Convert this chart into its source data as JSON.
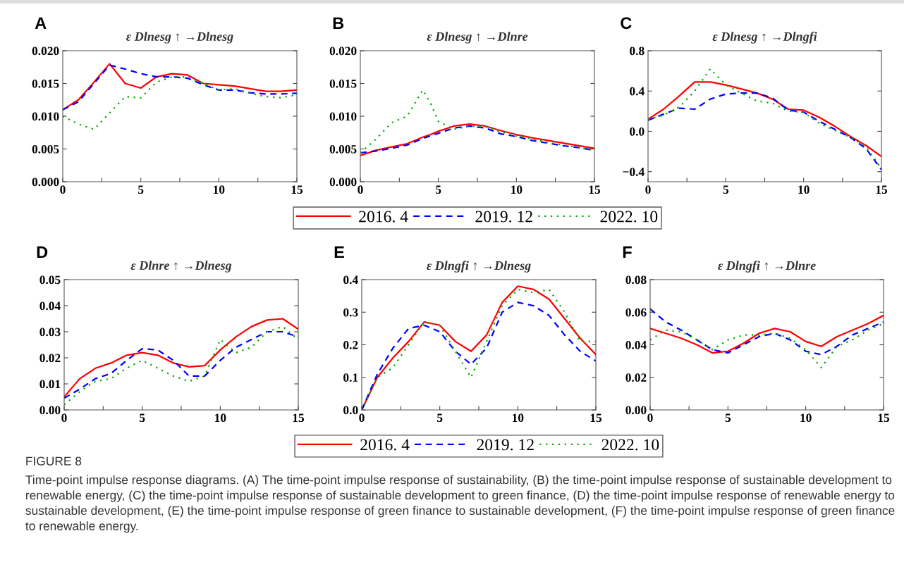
{
  "chart_data": [
    {
      "type": "line",
      "title": "A",
      "subtitle": "ε Dlnesg ↑ →Dlnesg",
      "x": [
        0,
        1,
        2,
        3,
        4,
        5,
        6,
        7,
        8,
        9,
        10,
        11,
        12,
        13,
        14,
        15
      ],
      "xlim": [
        0,
        15
      ],
      "xticks": [
        0,
        {
          "value": 2.5,
          "label": null
        },
        5,
        {
          "value": 7.5,
          "label": null
        },
        10,
        {
          "value": 12.5,
          "label": null
        },
        15
      ],
      "ylim": [
        0,
        0.02
      ],
      "yticks": [
        {
          "value": 0,
          "label": "0.000"
        },
        {
          "value": 0.005,
          "label": "0.005"
        },
        {
          "value": 0.01,
          "label": "0.010"
        },
        {
          "value": 0.015,
          "label": "0.015"
        },
        {
          "value": 0.02,
          "label": "0.020"
        }
      ],
      "grid": false,
      "series": [
        {
          "color": "#ff0000",
          "line_style": "solid",
          "values": [
            0.011,
            0.0125,
            0.0152,
            0.018,
            0.015,
            0.0143,
            0.016,
            0.0165,
            0.0163,
            0.015,
            0.0148,
            0.0146,
            0.0142,
            0.0138,
            0.0138,
            0.014
          ]
        },
        {
          "color": "#0000ff",
          "line_style": "dashed",
          "values": [
            0.011,
            0.0122,
            0.015,
            0.0178,
            0.0172,
            0.0165,
            0.016,
            0.016,
            0.0158,
            0.0148,
            0.014,
            0.014,
            0.0136,
            0.0134,
            0.0134,
            0.0135
          ]
        },
        {
          "color": "#00aa00",
          "line_style": "dotted",
          "values": [
            0.01,
            0.0088,
            0.008,
            0.0105,
            0.013,
            0.0128,
            0.0152,
            0.016,
            0.016,
            0.015,
            0.014,
            0.0142,
            0.0135,
            0.013,
            0.0128,
            0.0133
          ]
        }
      ]
    },
    {
      "type": "line",
      "title": "B",
      "subtitle": "ε Dlnesg ↑ →Dlnre",
      "x": [
        0,
        1,
        2,
        3,
        3.5,
        4,
        4.5,
        5,
        6,
        7,
        8,
        9,
        10,
        11,
        12,
        13,
        14,
        15
      ],
      "xlim": [
        0,
        15
      ],
      "xticks": [
        0,
        {
          "value": 2.5,
          "label": null
        },
        5,
        {
          "value": 7.5,
          "label": null
        },
        10,
        {
          "value": 12.5,
          "label": null
        },
        15
      ],
      "ylim": [
        0,
        0.02
      ],
      "yticks": [
        {
          "value": 0,
          "label": "0.000"
        },
        {
          "value": 0.005,
          "label": "0.005"
        },
        {
          "value": 0.01,
          "label": "0.010"
        },
        {
          "value": 0.015,
          "label": "0.015"
        },
        {
          "value": 0.02,
          "label": "0.020"
        }
      ],
      "grid": false,
      "legend": "bottom",
      "series": [
        {
          "name": "2016. 4",
          "color": "#ff0000",
          "line_style": "solid",
          "values": [
            0.004,
            0.0048,
            0.0053,
            0.0058,
            0.0063,
            0.0068,
            0.0072,
            0.0077,
            0.0085,
            0.0088,
            0.0085,
            0.0078,
            0.0072,
            0.0067,
            0.0063,
            0.0059,
            0.0055,
            0.0051
          ]
        },
        {
          "name": "2019. 12",
          "color": "#0000ff",
          "line_style": "dashed",
          "values": [
            0.0044,
            0.0047,
            0.0051,
            0.0056,
            0.0061,
            0.0066,
            0.007,
            0.0074,
            0.0082,
            0.0085,
            0.0082,
            0.0073,
            0.0069,
            0.0063,
            0.0059,
            0.0055,
            0.0052,
            0.0048
          ]
        },
        {
          "name": "2022. 10",
          "color": "#00aa00",
          "line_style": "dotted",
          "values": [
            0.0044,
            0.0065,
            0.009,
            0.01,
            0.012,
            0.014,
            0.012,
            0.0092,
            0.008,
            0.0085,
            0.0084,
            0.0076,
            0.007,
            0.0065,
            0.006,
            0.0056,
            0.0052,
            0.0048
          ]
        }
      ]
    },
    {
      "type": "line",
      "title": "C",
      "subtitle": "ε Dlnesg ↑ →Dlngfi",
      "x": [
        0,
        1,
        2,
        3,
        4,
        5,
        6,
        7,
        8,
        9,
        10,
        11,
        12,
        13,
        14,
        15
      ],
      "xlim": [
        0,
        15
      ],
      "xticks": [
        0,
        {
          "value": 2.5,
          "label": null
        },
        5,
        {
          "value": 7.5,
          "label": null
        },
        10,
        {
          "value": 12.5,
          "label": null
        },
        15
      ],
      "ylim": [
        -0.5,
        0.8
      ],
      "yticks": [
        {
          "value": -0.4,
          "label": "−0.4"
        },
        {
          "value": 0,
          "label": "0.0"
        },
        {
          "value": 0.4,
          "label": "0.4"
        },
        {
          "value": 0.8,
          "label": "0.8"
        }
      ],
      "grid": false,
      "series": [
        {
          "color": "#ff0000",
          "line_style": "solid",
          "values": [
            0.12,
            0.22,
            0.35,
            0.49,
            0.49,
            0.46,
            0.42,
            0.38,
            0.32,
            0.22,
            0.21,
            0.14,
            0.05,
            -0.05,
            -0.14,
            -0.25
          ]
        },
        {
          "color": "#0000ff",
          "line_style": "dashed",
          "values": [
            0.11,
            0.17,
            0.23,
            0.22,
            0.32,
            0.37,
            0.38,
            0.38,
            0.33,
            0.21,
            0.19,
            0.1,
            0.02,
            -0.06,
            -0.17,
            -0.38
          ]
        },
        {
          "color": "#00aa00",
          "line_style": "dotted",
          "values": [
            0.12,
            0.16,
            0.24,
            0.4,
            0.62,
            0.46,
            0.38,
            0.3,
            0.28,
            0.2,
            0.19,
            0.08,
            0.01,
            -0.06,
            -0.15,
            -0.37
          ]
        }
      ]
    },
    {
      "type": "line",
      "title": "D",
      "subtitle": "ε Dlnre ↑ →Dlnesg",
      "x": [
        0,
        1,
        2,
        3,
        4,
        5,
        6,
        7,
        8,
        9,
        10,
        11,
        12,
        13,
        14,
        15
      ],
      "xlim": [
        0,
        15
      ],
      "xticks": [
        0,
        {
          "value": 2.5,
          "label": null
        },
        5,
        {
          "value": 7.5,
          "label": null
        },
        10,
        {
          "value": 12.5,
          "label": null
        },
        15
      ],
      "ylim": [
        0,
        0.05
      ],
      "yticks": [
        {
          "value": 0,
          "label": "0.00"
        },
        {
          "value": 0.01,
          "label": "0.01"
        },
        {
          "value": 0.02,
          "label": "0.02"
        },
        {
          "value": 0.03,
          "label": "0.03"
        },
        {
          "value": 0.04,
          "label": "0.04"
        },
        {
          "value": 0.05,
          "label": "0.05"
        }
      ],
      "grid": false,
      "series": [
        {
          "color": "#ff0000",
          "line_style": "solid",
          "values": [
            0.005,
            0.012,
            0.016,
            0.018,
            0.021,
            0.022,
            0.021,
            0.018,
            0.0165,
            0.017,
            0.023,
            0.028,
            0.032,
            0.0345,
            0.035,
            0.031
          ]
        },
        {
          "color": "#0000ff",
          "line_style": "dashed",
          "values": [
            0.0045,
            0.008,
            0.012,
            0.014,
            0.019,
            0.0235,
            0.023,
            0.019,
            0.013,
            0.013,
            0.019,
            0.024,
            0.027,
            0.03,
            0.03,
            0.028
          ]
        },
        {
          "color": "#00aa00",
          "line_style": "dotted",
          "values": [
            0.002,
            0.007,
            0.011,
            0.012,
            0.016,
            0.019,
            0.016,
            0.013,
            0.011,
            0.013,
            0.027,
            0.022,
            0.024,
            0.03,
            0.032,
            0.027
          ]
        }
      ]
    },
    {
      "type": "line",
      "title": "E",
      "subtitle": "ε Dlngfi ↑ →Dlnesg",
      "x": [
        0,
        1,
        2,
        3,
        4,
        5,
        6,
        7,
        8,
        9,
        10,
        11,
        12,
        13,
        14,
        15
      ],
      "xlim": [
        0,
        15
      ],
      "xticks": [
        0,
        {
          "value": 2.5,
          "label": null
        },
        5,
        {
          "value": 7.5,
          "label": null
        },
        10,
        {
          "value": 12.5,
          "label": null
        },
        15
      ],
      "ylim": [
        0,
        0.4
      ],
      "yticks": [
        {
          "value": 0,
          "label": "0.0"
        },
        {
          "value": 0.1,
          "label": "0.1"
        },
        {
          "value": 0.2,
          "label": "0.2"
        },
        {
          "value": 0.3,
          "label": "0.3"
        },
        {
          "value": 0.4,
          "label": "0.4"
        }
      ],
      "grid": false,
      "legend": "bottom",
      "series": [
        {
          "name": "2016. 4",
          "color": "#ff0000",
          "line_style": "solid",
          "values": [
            0,
            0.1,
            0.16,
            0.21,
            0.27,
            0.26,
            0.21,
            0.18,
            0.23,
            0.33,
            0.38,
            0.37,
            0.34,
            0.28,
            0.22,
            0.17
          ]
        },
        {
          "name": "2019. 12",
          "color": "#0000ff",
          "line_style": "dashed",
          "values": [
            0,
            0.11,
            0.19,
            0.25,
            0.26,
            0.24,
            0.18,
            0.14,
            0.19,
            0.3,
            0.33,
            0.32,
            0.29,
            0.23,
            0.18,
            0.15
          ]
        },
        {
          "name": "2022. 10",
          "color": "#00aa00",
          "line_style": "dotted",
          "values": [
            0,
            0.1,
            0.13,
            0.2,
            0.27,
            0.26,
            0.18,
            0.1,
            0.21,
            0.32,
            0.37,
            0.36,
            0.37,
            0.3,
            0.21,
            0.21
          ]
        }
      ]
    },
    {
      "type": "line",
      "title": "F",
      "subtitle": "ε Dlngfi ↑ →Dlnre",
      "x": [
        0,
        1,
        2,
        3,
        4,
        5,
        6,
        7,
        8,
        9,
        10,
        11,
        12,
        13,
        14,
        15
      ],
      "xlim": [
        0,
        15
      ],
      "xticks": [
        0,
        {
          "value": 2.5,
          "label": null
        },
        5,
        {
          "value": 7.5,
          "label": null
        },
        10,
        {
          "value": 12.5,
          "label": null
        },
        15
      ],
      "ylim": [
        0,
        0.08
      ],
      "yticks": [
        {
          "value": 0,
          "label": "0.00"
        },
        {
          "value": 0.02,
          "label": "0.02"
        },
        {
          "value": 0.04,
          "label": "0.04"
        },
        {
          "value": 0.06,
          "label": "0.06"
        },
        {
          "value": 0.08,
          "label": "0.08"
        }
      ],
      "grid": false,
      "annotations": [
        "FIGURE 8",
        "Time-point impulse response diagrams. (A) The time-point impulse response of sustainability, (B) the time-point impulse response of sustainable development to renewable energy, (C) the time-point impulse response of sustainable development to green finance, (D) the time-point impulse response of renewable energy to sustainable development, (E) the time-point impulse response of green finance to sustainable development, (F) the time-point impulse response of green finance to renewable energy."
      ],
      "series": [
        {
          "color": "#ff0000",
          "line_style": "solid",
          "values": [
            0.05,
            0.047,
            0.044,
            0.04,
            0.035,
            0.036,
            0.041,
            0.047,
            0.05,
            0.048,
            0.042,
            0.039,
            0.045,
            0.049,
            0.053,
            0.058
          ]
        },
        {
          "color": "#0000ff",
          "line_style": "dashed",
          "values": [
            0.062,
            0.054,
            0.049,
            0.043,
            0.037,
            0.035,
            0.04,
            0.045,
            0.047,
            0.043,
            0.036,
            0.034,
            0.039,
            0.046,
            0.05,
            0.054
          ]
        },
        {
          "color": "#00aa00",
          "line_style": "dotted",
          "values": [
            0.043,
            0.049,
            0.048,
            0.043,
            0.037,
            0.043,
            0.046,
            0.046,
            0.047,
            0.044,
            0.037,
            0.026,
            0.039,
            0.043,
            0.049,
            0.053
          ]
        }
      ]
    }
  ]
}
